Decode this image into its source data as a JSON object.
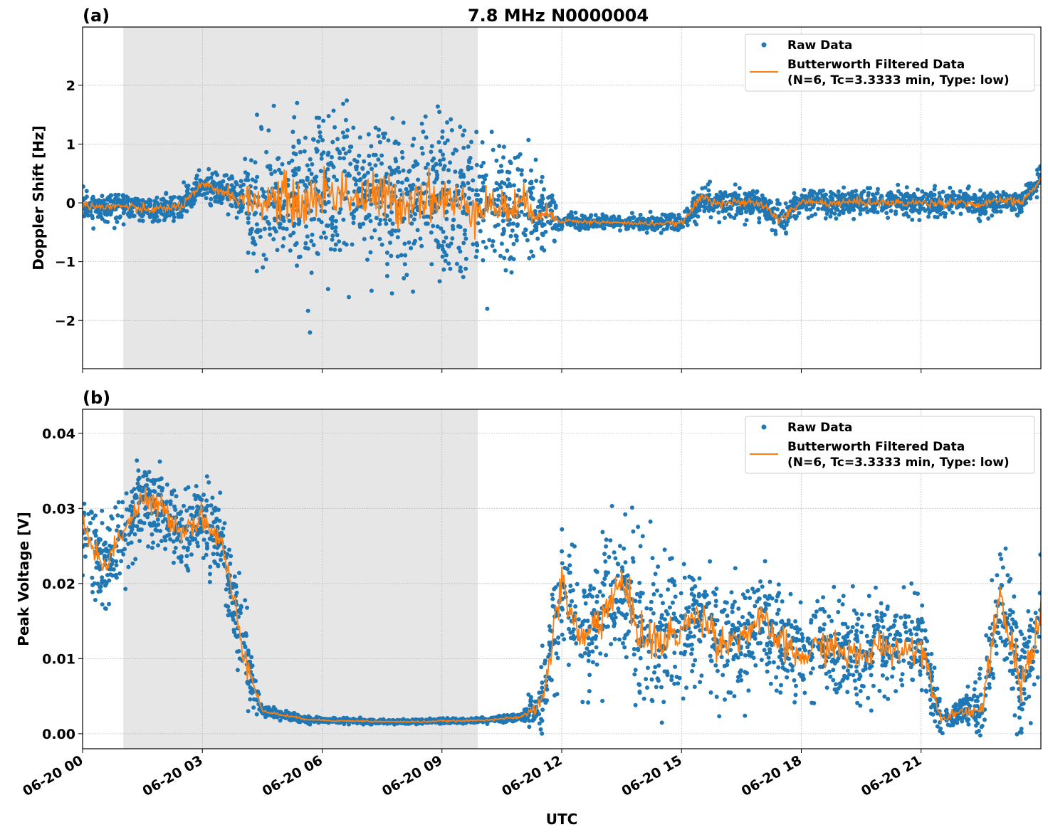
{
  "title": "7.8 MHz N0000004",
  "xlabel": "UTC",
  "x_ticks": [
    "06-20 00",
    "06-20 03",
    "06-20 06",
    "06-20 09",
    "06-20 12",
    "06-20 15",
    "06-20 18",
    "06-20 21"
  ],
  "colors": {
    "raw": "#1f77b4",
    "filtered": "#ff7f0e",
    "shade": "#e6e6e6"
  },
  "chart_data": [
    {
      "type": "scatter+line",
      "panel_label": "(a)",
      "ylabel": "Doppler Shift [Hz]",
      "xlim_hours": [
        0,
        24
      ],
      "ylim": [
        -2.82,
        2.99
      ],
      "y_ticks": [
        {
          "v": 2,
          "label": "2"
        },
        {
          "v": 1,
          "label": "1"
        },
        {
          "v": 0,
          "label": "0"
        },
        {
          "v": -1,
          "label": "−1"
        },
        {
          "v": -2,
          "label": "−2"
        }
      ],
      "shaded_span_hours": [
        1.02,
        9.9
      ],
      "grid": true,
      "legend": {
        "position": "top-right",
        "raw": "Raw Data",
        "filtered_line1": "Butterworth Filtered Data",
        "filtered_line2": "(N=6, Tc=3.3333 min, Type: low)"
      },
      "filtered_series_halfhourly": [
        -0.02,
        -0.08,
        -0.05,
        -0.12,
        -0.1,
        -0.05,
        0.3,
        0.2,
        0.05,
        0.0,
        0.1,
        -0.05,
        0.15,
        0.2,
        0.05,
        0.1,
        0.0,
        0.15,
        0.05,
        -0.05,
        0.0,
        -0.1,
        -0.05,
        -0.15,
        -0.3,
        -0.32,
        -0.33,
        -0.34,
        -0.35,
        -0.35,
        -0.35,
        0.1,
        0.0,
        0.0,
        -0.02,
        -0.3,
        0.02,
        0.0,
        0.0,
        0.02,
        0.0,
        0.0,
        0.0,
        0.0,
        0.02,
        -0.05,
        0.05,
        0.0,
        0.4
      ],
      "raw_spread_halfhourly": [
        0.2,
        0.2,
        0.2,
        0.2,
        0.2,
        0.22,
        0.25,
        0.3,
        0.45,
        1.0,
        1.1,
        1.2,
        1.2,
        1.2,
        1.2,
        1.2,
        1.2,
        1.2,
        1.2,
        1.1,
        1.1,
        1.0,
        0.9,
        0.6,
        0.12,
        0.1,
        0.1,
        0.1,
        0.1,
        0.1,
        0.12,
        0.25,
        0.2,
        0.2,
        0.2,
        0.25,
        0.2,
        0.2,
        0.2,
        0.2,
        0.2,
        0.2,
        0.2,
        0.2,
        0.18,
        0.18,
        0.18,
        0.18,
        0.2
      ]
    },
    {
      "type": "scatter+line",
      "panel_label": "(b)",
      "ylabel": "Peak Voltage [V]",
      "xlim_hours": [
        0,
        24
      ],
      "ylim": [
        -0.002,
        0.0432
      ],
      "y_ticks": [
        {
          "v": 0.04,
          "label": "0.04"
        },
        {
          "v": 0.03,
          "label": "0.03"
        },
        {
          "v": 0.02,
          "label": "0.02"
        },
        {
          "v": 0.01,
          "label": "0.01"
        },
        {
          "v": 0.0,
          "label": "0.00"
        }
      ],
      "shaded_span_hours": [
        1.02,
        9.9
      ],
      "grid": true,
      "legend": {
        "position": "top-right",
        "raw": "Raw Data",
        "filtered_line1": "Butterworth Filtered Data",
        "filtered_line2": "(N=6, Tc=3.3333 min, Type: low)"
      },
      "filtered_series_halfhourly": [
        0.028,
        0.022,
        0.027,
        0.031,
        0.03,
        0.027,
        0.029,
        0.025,
        0.012,
        0.003,
        0.0025,
        0.002,
        0.0018,
        0.0017,
        0.0017,
        0.0016,
        0.0016,
        0.0016,
        0.0017,
        0.0017,
        0.0018,
        0.002,
        0.0022,
        0.004,
        0.02,
        0.012,
        0.016,
        0.02,
        0.013,
        0.012,
        0.014,
        0.016,
        0.012,
        0.013,
        0.015,
        0.012,
        0.01,
        0.012,
        0.011,
        0.01,
        0.012,
        0.011,
        0.012,
        0.002,
        0.003,
        0.003,
        0.018,
        0.006,
        0.016
      ],
      "raw_spread_halfhourly": [
        0.005,
        0.005,
        0.005,
        0.005,
        0.005,
        0.005,
        0.005,
        0.005,
        0.006,
        0.0006,
        0.0005,
        0.0004,
        0.0003,
        0.0003,
        0.0003,
        0.0003,
        0.0003,
        0.0003,
        0.0003,
        0.0003,
        0.0003,
        0.0004,
        0.0005,
        0.004,
        0.008,
        0.008,
        0.008,
        0.008,
        0.008,
        0.008,
        0.007,
        0.007,
        0.006,
        0.006,
        0.006,
        0.006,
        0.006,
        0.006,
        0.006,
        0.006,
        0.006,
        0.006,
        0.006,
        0.0015,
        0.0015,
        0.004,
        0.008,
        0.007,
        0.007
      ]
    }
  ]
}
